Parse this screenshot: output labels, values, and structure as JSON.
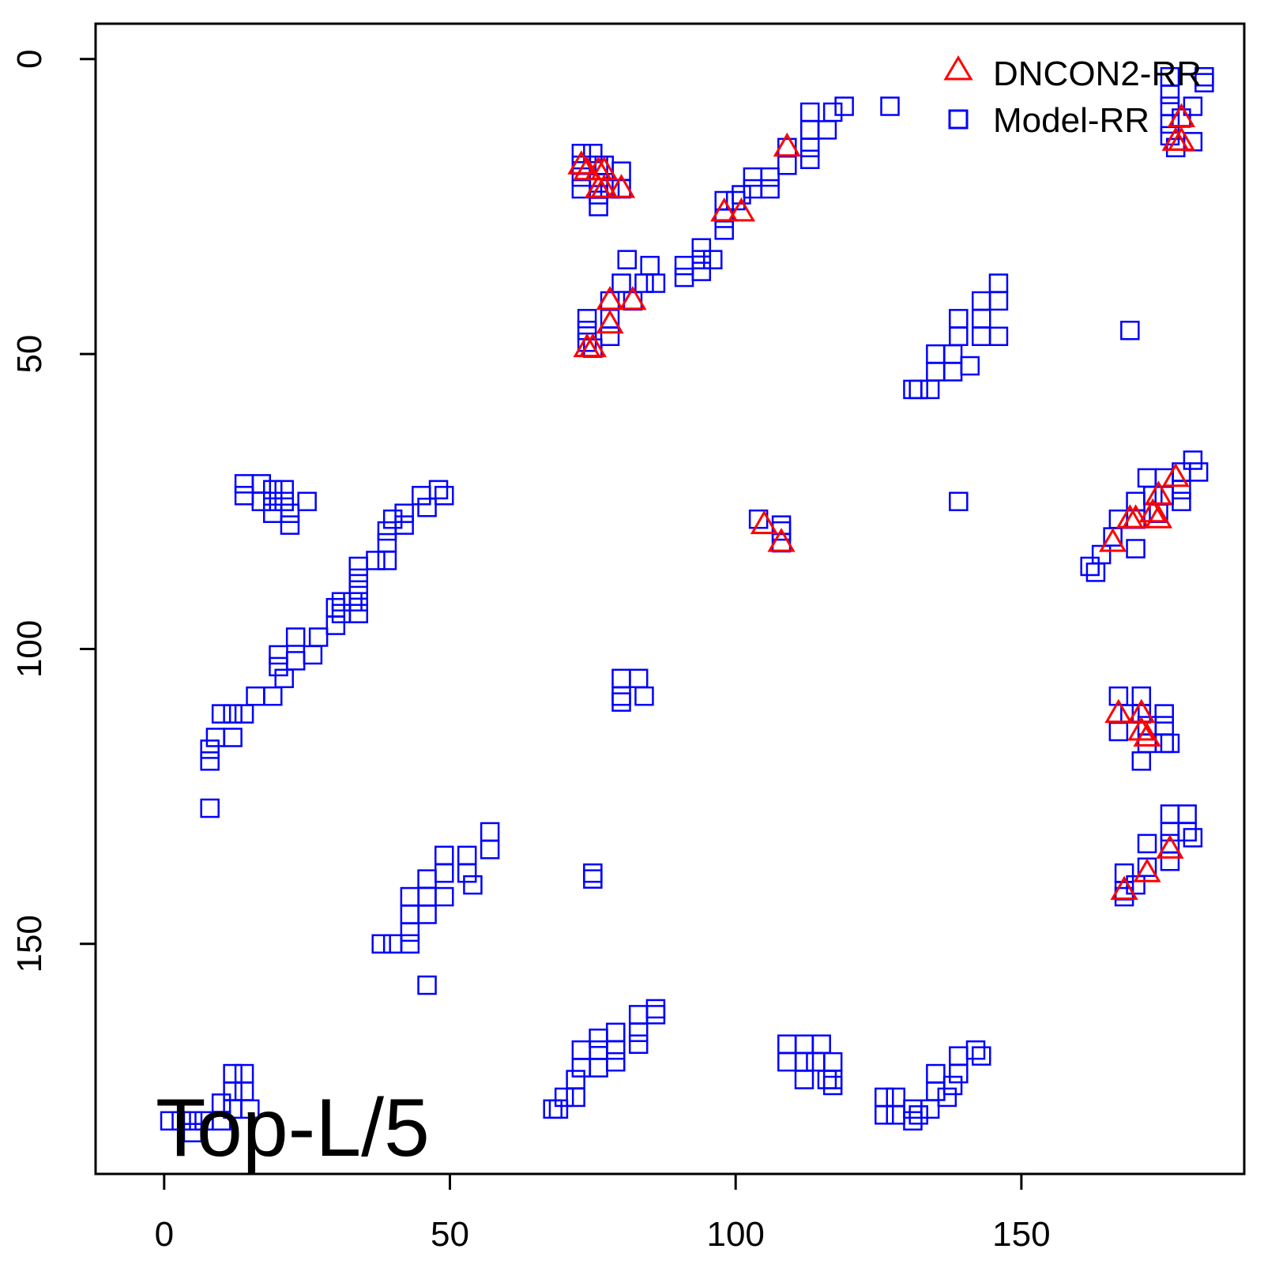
{
  "chart_data": {
    "type": "scatter",
    "title": "",
    "xlabel": "",
    "ylabel": "",
    "xlim": [
      -12,
      189
    ],
    "ylim": [
      -6,
      189
    ],
    "y_inverted": true,
    "x_ticks": [
      0,
      50,
      100,
      150
    ],
    "y_ticks": [
      0,
      50,
      100,
      150
    ],
    "grid": false,
    "legend_position": "top-right",
    "annotation": "Top-L/5",
    "series": [
      {
        "name": "DNCON2-RR",
        "marker": "triangle",
        "color": "#ff0000",
        "points": [
          [
            73,
            18
          ],
          [
            74,
            19
          ],
          [
            76,
            19
          ],
          [
            77,
            19
          ],
          [
            76,
            22
          ],
          [
            77,
            22
          ],
          [
            80,
            22
          ],
          [
            109,
            15
          ],
          [
            98,
            26
          ],
          [
            101,
            26
          ],
          [
            78,
            41
          ],
          [
            82,
            41
          ],
          [
            78,
            45
          ],
          [
            74,
            49
          ],
          [
            75,
            49
          ],
          [
            178,
            10
          ],
          [
            177,
            14
          ],
          [
            178,
            14
          ],
          [
            177,
            71
          ],
          [
            174,
            74
          ],
          [
            173,
            77
          ],
          [
            174,
            78
          ],
          [
            170,
            78
          ],
          [
            169,
            78
          ],
          [
            166,
            82
          ],
          [
            105,
            79
          ],
          [
            108,
            82
          ],
          [
            167,
            111
          ],
          [
            171,
            111
          ],
          [
            171,
            114
          ],
          [
            172,
            115
          ],
          [
            176,
            134
          ],
          [
            172,
            138
          ],
          [
            168,
            141
          ]
        ]
      },
      {
        "name": "Model-RR",
        "marker": "square",
        "color": "#0000ff",
        "points": [
          [
            73,
            16
          ],
          [
            75,
            16
          ],
          [
            73,
            18
          ],
          [
            76,
            18
          ],
          [
            77,
            18
          ],
          [
            80,
            19
          ],
          [
            73,
            20
          ],
          [
            76,
            21
          ],
          [
            78,
            22
          ],
          [
            80,
            22
          ],
          [
            73,
            22
          ],
          [
            76,
            23
          ],
          [
            76,
            25
          ],
          [
            109,
            15
          ],
          [
            109,
            18
          ],
          [
            106,
            20
          ],
          [
            103,
            20
          ],
          [
            103,
            22
          ],
          [
            106,
            22
          ],
          [
            100,
            24
          ],
          [
            101,
            23
          ],
          [
            98,
            24
          ],
          [
            98,
            27
          ],
          [
            98,
            29
          ],
          [
            113,
            9
          ],
          [
            113,
            12
          ],
          [
            113,
            15
          ],
          [
            113,
            17
          ],
          [
            117,
            9
          ],
          [
            116,
            12
          ],
          [
            119,
            8
          ],
          [
            127,
            8
          ],
          [
            81,
            34
          ],
          [
            85,
            35
          ],
          [
            91,
            35
          ],
          [
            91,
            37
          ],
          [
            94,
            32
          ],
          [
            94,
            34
          ],
          [
            94,
            36
          ],
          [
            96,
            34
          ],
          [
            84,
            38
          ],
          [
            86,
            38
          ],
          [
            80,
            38
          ],
          [
            78,
            41
          ],
          [
            82,
            41
          ],
          [
            78,
            44
          ],
          [
            78,
            47
          ],
          [
            74,
            44
          ],
          [
            74,
            46
          ],
          [
            74,
            48
          ],
          [
            75,
            49
          ],
          [
            176,
            3
          ],
          [
            176,
            6
          ],
          [
            176,
            8
          ],
          [
            180,
            8
          ],
          [
            178,
            10
          ],
          [
            176,
            11
          ],
          [
            176,
            13
          ],
          [
            177,
            15
          ],
          [
            180,
            14
          ],
          [
            182,
            3
          ],
          [
            182,
            4
          ],
          [
            146,
            38
          ],
          [
            146,
            41
          ],
          [
            143,
            41
          ],
          [
            143,
            44
          ],
          [
            143,
            47
          ],
          [
            146,
            47
          ],
          [
            139,
            44
          ],
          [
            139,
            47
          ],
          [
            135,
            50
          ],
          [
            135,
            53
          ],
          [
            138,
            50
          ],
          [
            138,
            53
          ],
          [
            141,
            52
          ],
          [
            134,
            56
          ],
          [
            131,
            56
          ],
          [
            132,
            56
          ],
          [
            169,
            46
          ],
          [
            180,
            68
          ],
          [
            181,
            70
          ],
          [
            178,
            70
          ],
          [
            178,
            73
          ],
          [
            178,
            75
          ],
          [
            175,
            71
          ],
          [
            175,
            74
          ],
          [
            172,
            71
          ],
          [
            173,
            74
          ],
          [
            174,
            77
          ],
          [
            170,
            75
          ],
          [
            170,
            78
          ],
          [
            170,
            83
          ],
          [
            167,
            78
          ],
          [
            166,
            81
          ],
          [
            164,
            84
          ],
          [
            162,
            86
          ],
          [
            163,
            87
          ],
          [
            139,
            75
          ],
          [
            14,
            72
          ],
          [
            14,
            74
          ],
          [
            17,
            72
          ],
          [
            17,
            75
          ],
          [
            19,
            73
          ],
          [
            19,
            75
          ],
          [
            19,
            77
          ],
          [
            21,
            73
          ],
          [
            21,
            75
          ],
          [
            22,
            77
          ],
          [
            22,
            79
          ],
          [
            25,
            75
          ],
          [
            49,
            74
          ],
          [
            48,
            73
          ],
          [
            46,
            76
          ],
          [
            45,
            74
          ],
          [
            42,
            77
          ],
          [
            42,
            79
          ],
          [
            40,
            78
          ],
          [
            39,
            80
          ],
          [
            39,
            82
          ],
          [
            39,
            85
          ],
          [
            37,
            85
          ],
          [
            34,
            86
          ],
          [
            34,
            88
          ],
          [
            34,
            90
          ],
          [
            33,
            92
          ],
          [
            31,
            92
          ],
          [
            34,
            92
          ],
          [
            31,
            94
          ],
          [
            34,
            94
          ],
          [
            30,
            93
          ],
          [
            30,
            96
          ],
          [
            23,
            98
          ],
          [
            27,
            98
          ],
          [
            23,
            102
          ],
          [
            26,
            101
          ],
          [
            20,
            101
          ],
          [
            20,
            103
          ],
          [
            21,
            105
          ],
          [
            19,
            108
          ],
          [
            16,
            108
          ],
          [
            14,
            111
          ],
          [
            12,
            111
          ],
          [
            10,
            111
          ],
          [
            12,
            115
          ],
          [
            9,
            115
          ],
          [
            8,
            117
          ],
          [
            8,
            119
          ],
          [
            8,
            127
          ],
          [
            104,
            78
          ],
          [
            108,
            79
          ],
          [
            108,
            80
          ],
          [
            108,
            82
          ],
          [
            80,
            105
          ],
          [
            83,
            105
          ],
          [
            80,
            108
          ],
          [
            84,
            108
          ],
          [
            80,
            109
          ],
          [
            75,
            138
          ],
          [
            167,
            108
          ],
          [
            171,
            108
          ],
          [
            169,
            111
          ],
          [
            171,
            111
          ],
          [
            167,
            114
          ],
          [
            172,
            113
          ],
          [
            175,
            111
          ],
          [
            175,
            113
          ],
          [
            175,
            116
          ],
          [
            176,
            116
          ],
          [
            171,
            119
          ],
          [
            172,
            116
          ],
          [
            176,
            128
          ],
          [
            179,
            128
          ],
          [
            179,
            131
          ],
          [
            176,
            131
          ],
          [
            176,
            133
          ],
          [
            180,
            132
          ],
          [
            176,
            136
          ],
          [
            172,
            133
          ],
          [
            172,
            137
          ],
          [
            168,
            138
          ],
          [
            168,
            141
          ],
          [
            168,
            142
          ],
          [
            170,
            140
          ],
          [
            57,
            131
          ],
          [
            57,
            134
          ],
          [
            53,
            135
          ],
          [
            53,
            138
          ],
          [
            54,
            140
          ],
          [
            49,
            135
          ],
          [
            49,
            138
          ],
          [
            49,
            142
          ],
          [
            46,
            139
          ],
          [
            46,
            142
          ],
          [
            46,
            145
          ],
          [
            43,
            142
          ],
          [
            43,
            145
          ],
          [
            43,
            148
          ],
          [
            43,
            150
          ],
          [
            40,
            150
          ],
          [
            38,
            150
          ],
          [
            46,
            157
          ],
          [
            75,
            139
          ],
          [
            86,
            161
          ],
          [
            86,
            162
          ],
          [
            83,
            162
          ],
          [
            83,
            165
          ],
          [
            83,
            167
          ],
          [
            79,
            165
          ],
          [
            79,
            168
          ],
          [
            79,
            170
          ],
          [
            76,
            166
          ],
          [
            76,
            168
          ],
          [
            76,
            171
          ],
          [
            73,
            168
          ],
          [
            73,
            171
          ],
          [
            72,
            173
          ],
          [
            72,
            176
          ],
          [
            70,
            176
          ],
          [
            69,
            178
          ],
          [
            68,
            178
          ],
          [
            109,
            167
          ],
          [
            112,
            167
          ],
          [
            115,
            167
          ],
          [
            109,
            170
          ],
          [
            112,
            170
          ],
          [
            114,
            170
          ],
          [
            117,
            170
          ],
          [
            112,
            173
          ],
          [
            116,
            173
          ],
          [
            117,
            173
          ],
          [
            117,
            174
          ],
          [
            142,
            168
          ],
          [
            143,
            169
          ],
          [
            139,
            169
          ],
          [
            139,
            172
          ],
          [
            138,
            174
          ],
          [
            137,
            176
          ],
          [
            135,
            172
          ],
          [
            135,
            175
          ],
          [
            134,
            178
          ],
          [
            131,
            178
          ],
          [
            131,
            180
          ],
          [
            128,
            176
          ],
          [
            128,
            179
          ],
          [
            126,
            176
          ],
          [
            126,
            179
          ],
          [
            132,
            179
          ],
          [
            14,
            172
          ],
          [
            14,
            175
          ],
          [
            12,
            172
          ],
          [
            12,
            175
          ],
          [
            12,
            178
          ],
          [
            15,
            178
          ],
          [
            10,
            177
          ],
          [
            10,
            180
          ],
          [
            7,
            180
          ],
          [
            5,
            180
          ],
          [
            3,
            180
          ],
          [
            1,
            180
          ],
          [
            5,
            182
          ]
        ]
      }
    ]
  }
}
